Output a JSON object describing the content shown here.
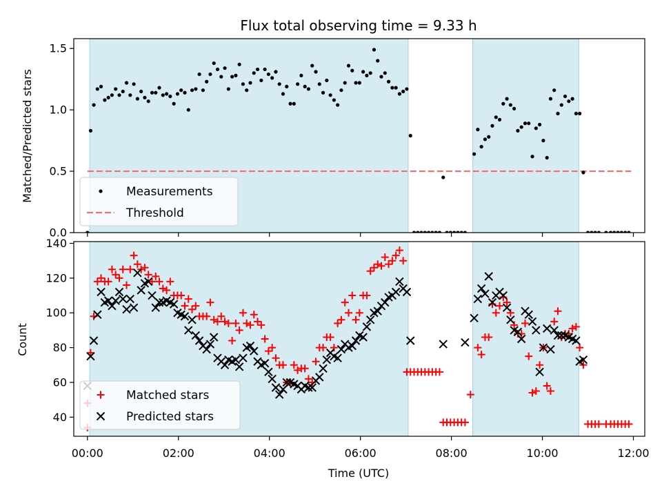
{
  "chart_data": [
    {
      "type": "scatter",
      "title": "Flux total observing time = 9.33 h",
      "xlabel": "",
      "ylabel": "Matched/Predicted stars",
      "xlim": [
        -0.3,
        12.25
      ],
      "ylim": [
        0,
        1.58
      ],
      "yticks": [
        0.0,
        0.5,
        1.0,
        1.5
      ],
      "ytick_labels": [
        "0.0",
        "0.5",
        "1.0",
        "1.5"
      ],
      "shaded_intervals": [
        [
          0.05,
          7.05
        ],
        [
          8.47,
          10.8
        ]
      ],
      "legend": {
        "placement": "lower-left",
        "entries": [
          "Measurements",
          "Threshold"
        ]
      },
      "threshold": {
        "name": "Threshold",
        "value": 0.5,
        "x_range": [
          0.0,
          11.95
        ],
        "color": "#f07070"
      },
      "series": [
        {
          "name": "Measurements",
          "color": "#000000",
          "marker": "dot",
          "x": [
            0.0,
            0.07,
            0.14,
            0.22,
            0.3,
            0.38,
            0.46,
            0.54,
            0.62,
            0.7,
            0.78,
            0.86,
            0.94,
            1.02,
            1.1,
            1.18,
            1.26,
            1.34,
            1.42,
            1.5,
            1.58,
            1.66,
            1.74,
            1.82,
            1.9,
            1.98,
            2.06,
            2.14,
            2.22,
            2.3,
            2.38,
            2.46,
            2.54,
            2.62,
            2.7,
            2.78,
            2.86,
            2.94,
            3.02,
            3.1,
            3.18,
            3.26,
            3.34,
            3.42,
            3.5,
            3.58,
            3.66,
            3.74,
            3.82,
            3.9,
            3.98,
            4.06,
            4.14,
            4.22,
            4.3,
            4.38,
            4.46,
            4.54,
            4.62,
            4.7,
            4.78,
            4.86,
            4.94,
            5.02,
            5.1,
            5.18,
            5.26,
            5.34,
            5.42,
            5.5,
            5.58,
            5.66,
            5.74,
            5.82,
            5.9,
            5.98,
            6.06,
            6.14,
            6.22,
            6.3,
            6.38,
            6.46,
            6.54,
            6.62,
            6.7,
            6.78,
            6.86,
            6.94,
            7.02,
            7.1,
            7.18,
            7.26,
            7.34,
            7.42,
            7.5,
            7.58,
            7.66,
            7.74,
            7.82,
            7.9,
            7.98,
            8.06,
            8.14,
            8.22,
            8.3,
            8.5,
            8.58,
            8.66,
            8.74,
            8.82,
            8.9,
            8.98,
            9.06,
            9.14,
            9.22,
            9.3,
            9.38,
            9.46,
            9.54,
            9.62,
            9.7,
            9.78,
            9.86,
            9.94,
            10.02,
            10.1,
            10.18,
            10.26,
            10.34,
            10.42,
            10.5,
            10.58,
            10.66,
            10.74,
            10.82,
            10.9,
            11.0,
            11.08,
            11.16,
            11.24,
            11.4,
            11.5,
            11.58,
            11.66,
            11.74,
            11.82,
            11.9
          ],
          "y": [
            0.0,
            0.83,
            1.04,
            1.17,
            1.19,
            1.08,
            1.1,
            1.12,
            1.17,
            1.12,
            1.15,
            1.22,
            1.12,
            1.21,
            1.09,
            1.15,
            1.1,
            1.07,
            1.14,
            1.14,
            1.18,
            1.12,
            1.13,
            1.11,
            1.05,
            1.13,
            1.16,
            1.14,
            1.0,
            1.16,
            1.17,
            1.29,
            1.16,
            1.23,
            1.29,
            1.38,
            1.33,
            1.27,
            1.34,
            1.17,
            1.27,
            1.28,
            1.37,
            1.21,
            1.16,
            1.22,
            1.3,
            1.33,
            1.24,
            1.33,
            1.29,
            1.26,
            1.31,
            1.21,
            1.13,
            1.19,
            1.05,
            1.05,
            1.21,
            1.28,
            1.19,
            1.17,
            1.36,
            1.31,
            1.21,
            1.14,
            1.24,
            1.12,
            1.08,
            1.04,
            1.16,
            1.22,
            1.36,
            1.32,
            1.22,
            1.22,
            1.31,
            1.28,
            1.3,
            1.49,
            1.4,
            1.27,
            1.3,
            1.23,
            1.18,
            1.18,
            1.13,
            1.15,
            1.17,
            0.79,
            0.0,
            0.0,
            0.0,
            0.0,
            0.0,
            0.0,
            0.0,
            0.0,
            0.45,
            0.0,
            0.0,
            0.0,
            0.0,
            0.0,
            0.0,
            0.64,
            0.84,
            0.7,
            0.76,
            0.78,
            0.87,
            0.94,
            0.92,
            1.05,
            1.09,
            1.04,
            1.01,
            0.83,
            0.86,
            0.89,
            0.89,
            0.62,
            0.85,
            0.88,
            0.75,
            0.61,
            1.09,
            1.16,
            0.97,
            1.04,
            1.11,
            1.07,
            1.09,
            0.97,
            0.97,
            0.49,
            0.0,
            0.0,
            0.0,
            0.0,
            0.0,
            0.0,
            0.0,
            0.0,
            0.0,
            0.0,
            0.0
          ]
        }
      ]
    },
    {
      "type": "scatter",
      "title": "",
      "xlabel": "Time (UTC)",
      "ylabel": "Count",
      "xlim": [
        -0.3,
        12.25
      ],
      "ylim": [
        29,
        141
      ],
      "xticks": [
        0,
        2,
        4,
        6,
        8,
        10,
        12
      ],
      "xtick_labels": [
        "00:00",
        "02:00",
        "04:00",
        "06:00",
        "08:00",
        "10:00",
        "12:00"
      ],
      "yticks": [
        40,
        60,
        80,
        100,
        120,
        140
      ],
      "ytick_labels": [
        "40",
        "60",
        "80",
        "100",
        "120",
        "140"
      ],
      "shaded_intervals": [
        [
          0.05,
          7.05
        ],
        [
          8.47,
          10.8
        ]
      ],
      "legend": {
        "placement": "lower-left",
        "entries": [
          "Matched stars",
          "Predicted stars"
        ]
      },
      "series": [
        {
          "name": "Matched stars",
          "color": "#ff0000",
          "marker": "plus",
          "x": [
            0.0,
            0.0,
            0.07,
            0.14,
            0.22,
            0.3,
            0.38,
            0.46,
            0.54,
            0.62,
            0.7,
            0.78,
            0.86,
            0.94,
            1.02,
            1.1,
            1.18,
            1.26,
            1.34,
            1.42,
            1.5,
            1.58,
            1.66,
            1.74,
            1.82,
            1.9,
            1.98,
            2.06,
            2.14,
            2.22,
            2.3,
            2.38,
            2.46,
            2.54,
            2.62,
            2.7,
            2.78,
            2.86,
            2.94,
            3.02,
            3.1,
            3.18,
            3.26,
            3.34,
            3.42,
            3.5,
            3.58,
            3.66,
            3.74,
            3.82,
            3.9,
            3.98,
            4.06,
            4.14,
            4.22,
            4.3,
            4.38,
            4.46,
            4.54,
            4.62,
            4.7,
            4.78,
            4.86,
            4.94,
            5.02,
            5.1,
            5.18,
            5.26,
            5.34,
            5.42,
            5.5,
            5.58,
            5.66,
            5.74,
            5.82,
            5.9,
            5.98,
            6.06,
            6.14,
            6.22,
            6.3,
            6.38,
            6.46,
            6.54,
            6.62,
            6.7,
            6.78,
            6.86,
            6.94,
            7.02,
            7.1,
            7.18,
            7.26,
            7.34,
            7.42,
            7.5,
            7.58,
            7.66,
            7.74,
            7.82,
            7.9,
            7.98,
            8.06,
            8.14,
            8.22,
            8.3,
            8.42,
            8.58,
            8.66,
            8.74,
            8.82,
            8.9,
            8.98,
            9.06,
            9.14,
            9.22,
            9.3,
            9.38,
            9.46,
            9.54,
            9.62,
            9.7,
            9.78,
            9.86,
            9.94,
            10.02,
            10.1,
            10.18,
            10.26,
            10.34,
            10.42,
            10.5,
            10.58,
            10.66,
            10.74,
            10.82,
            10.9,
            11.0,
            11.08,
            11.16,
            11.24,
            11.4,
            11.5,
            11.58,
            11.66,
            11.74,
            11.82,
            11.9
          ],
          "y": [
            48,
            34,
            77,
            98,
            118,
            120,
            118,
            118,
            125,
            122,
            120,
            125,
            116,
            125,
            133,
            128,
            125,
            126,
            122,
            118,
            121,
            118,
            114,
            113,
            118,
            110,
            110,
            110,
            104,
            108,
            102,
            104,
            98,
            98,
            98,
            106,
            96,
            95,
            98,
            95,
            94,
            84,
            94,
            90,
            100,
            94,
            93,
            99,
            95,
            93,
            85,
            78,
            80,
            74,
            70,
            70,
            60,
            60,
            70,
            67,
            68,
            68,
            62,
            60,
            72,
            80,
            80,
            86,
            86,
            80,
            94,
            96,
            106,
            100,
            110,
            96,
            100,
            110,
            110,
            124,
            126,
            128,
            127,
            132,
            128,
            130,
            133,
            136,
            130,
            66,
            66,
            66,
            66,
            66,
            66,
            66,
            66,
            66,
            66,
            37,
            37,
            37,
            37,
            37,
            37,
            37,
            53,
            80,
            76,
            86,
            86,
            105,
            100,
            104,
            109,
            106,
            100,
            93,
            88,
            88,
            94,
            75,
            54,
            55,
            70,
            80,
            58,
            55,
            95,
            101,
            86,
            88,
            88,
            91,
            92,
            80,
            70,
            36,
            36,
            36,
            36,
            36,
            36,
            36,
            36,
            36,
            36,
            36
          ]
        },
        {
          "name": "Predicted stars",
          "color": "#000000",
          "marker": "x",
          "x": [
            0.0,
            0.07,
            0.14,
            0.22,
            0.3,
            0.38,
            0.46,
            0.54,
            0.62,
            0.7,
            0.78,
            0.86,
            0.94,
            1.02,
            1.1,
            1.18,
            1.26,
            1.34,
            1.42,
            1.5,
            1.58,
            1.66,
            1.74,
            1.82,
            1.9,
            1.98,
            2.06,
            2.14,
            2.22,
            2.3,
            2.38,
            2.46,
            2.54,
            2.62,
            2.7,
            2.78,
            2.86,
            2.94,
            3.02,
            3.1,
            3.18,
            3.26,
            3.34,
            3.42,
            3.5,
            3.58,
            3.66,
            3.74,
            3.82,
            3.9,
            3.98,
            4.06,
            4.14,
            4.22,
            4.3,
            4.38,
            4.46,
            4.54,
            4.62,
            4.7,
            4.78,
            4.86,
            4.94,
            5.02,
            5.1,
            5.18,
            5.26,
            5.34,
            5.42,
            5.5,
            5.58,
            5.66,
            5.74,
            5.82,
            5.9,
            5.98,
            6.06,
            6.14,
            6.22,
            6.3,
            6.38,
            6.46,
            6.54,
            6.62,
            6.7,
            6.78,
            6.86,
            6.94,
            7.02,
            7.1,
            7.82,
            8.3,
            8.5,
            8.58,
            8.66,
            8.74,
            8.82,
            8.9,
            8.98,
            9.06,
            9.14,
            9.22,
            9.3,
            9.38,
            9.46,
            9.54,
            9.62,
            9.7,
            9.78,
            9.86,
            9.94,
            10.02,
            10.1,
            10.18,
            10.26,
            10.34,
            10.42,
            10.5,
            10.58,
            10.66,
            10.74,
            10.82,
            10.9
          ],
          "y": [
            58,
            75,
            84,
            99,
            112,
            106,
            107,
            104,
            107,
            112,
            108,
            102,
            108,
            103,
            123,
            113,
            117,
            118,
            110,
            103,
            106,
            106,
            107,
            106,
            105,
            100,
            99,
            98,
            90,
            96,
            87,
            84,
            81,
            79,
            82,
            86,
            74,
            72,
            70,
            73,
            72,
            73,
            69,
            74,
            80,
            81,
            78,
            72,
            70,
            71,
            66,
            62,
            57,
            53,
            56,
            60,
            60,
            59,
            58,
            56,
            58,
            57,
            57,
            61,
            63,
            68,
            73,
            77,
            75,
            74,
            79,
            82,
            80,
            81,
            84,
            87,
            86,
            92,
            96,
            100,
            101,
            104,
            106,
            109,
            110,
            112,
            118,
            114,
            112,
            84,
            82,
            83,
            97,
            108,
            114,
            111,
            121,
            106,
            110,
            112,
            110,
            103,
            96,
            90,
            89,
            85,
            101,
            99,
            95,
            90,
            66,
            80,
            91,
            79,
            90,
            87,
            87,
            87,
            86,
            85,
            84,
            72,
            73
          ]
        }
      ]
    }
  ]
}
